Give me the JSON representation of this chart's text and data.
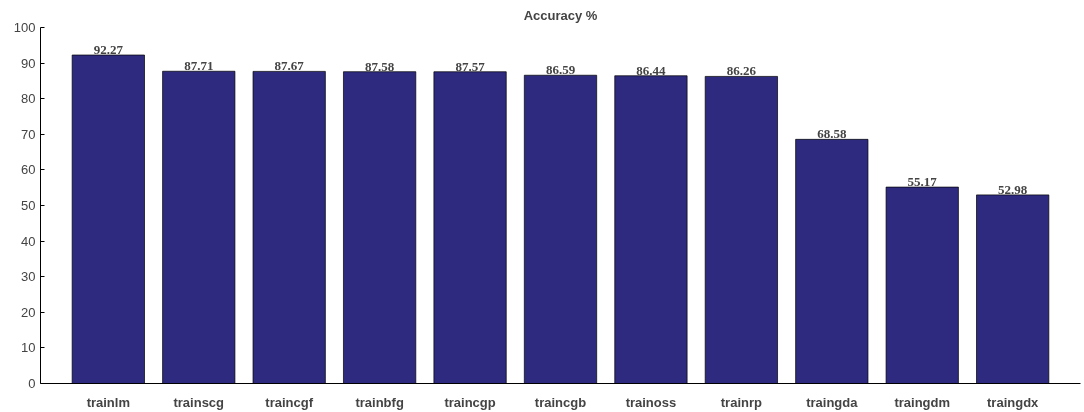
{
  "chart_data": {
    "type": "bar",
    "title": "Accuracy %",
    "categories": [
      "trainlm",
      "trainscg",
      "traincgf",
      "trainbfg",
      "traincgp",
      "traincgb",
      "trainoss",
      "trainrp",
      "traingda",
      "traingdm",
      "traingdx"
    ],
    "values": [
      92.27,
      87.71,
      87.67,
      87.58,
      87.57,
      86.59,
      86.44,
      86.26,
      68.58,
      55.17,
      52.98
    ],
    "color": "#2e2a80",
    "ylim": [
      0,
      100
    ],
    "yticks": [
      0,
      10,
      20,
      30,
      40,
      50,
      60,
      70,
      80,
      90,
      100
    ],
    "grid": false,
    "data_labels": true
  }
}
